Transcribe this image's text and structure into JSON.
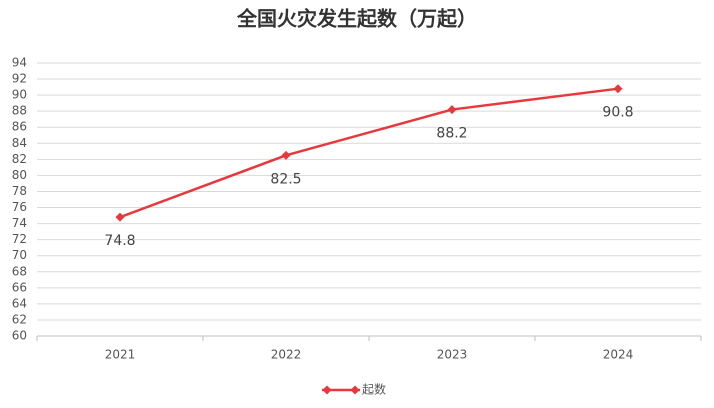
{
  "chart_data": {
    "type": "line",
    "title": "全国火灾发生起数（万起）",
    "categories": [
      "2021",
      "2022",
      "2023",
      "2024"
    ],
    "series": [
      {
        "name": "起数",
        "color": "#e8383d",
        "values": [
          74.8,
          82.5,
          88.2,
          90.8
        ]
      }
    ],
    "ylim": [
      60,
      94
    ],
    "yticks": [
      60,
      62,
      64,
      66,
      68,
      70,
      72,
      74,
      76,
      78,
      80,
      82,
      84,
      86,
      88,
      90,
      92,
      94
    ],
    "grid": true,
    "legend": "bottom"
  }
}
